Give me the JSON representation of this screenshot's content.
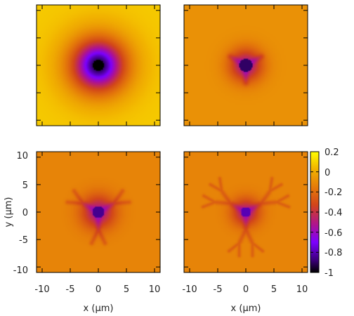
{
  "chart_data": [
    {
      "type": "heatmap",
      "panel": "top-left",
      "description_pattern": "radial well",
      "xlim": [
        -11,
        11
      ],
      "ylim": [
        -11,
        11
      ],
      "xlabel": "",
      "ylabel": "",
      "x_ticks": [],
      "y_ticks": [],
      "colorbar": false,
      "features": {
        "center_value": -1,
        "background_value": 0.08,
        "core_radius": 1.0,
        "halo_radius": 4.5,
        "branches": 0
      }
    },
    {
      "type": "heatmap",
      "panel": "top-right",
      "xlim": [
        -11,
        11
      ],
      "ylim": [
        -11,
        11
      ],
      "xlabel": "",
      "ylabel": "",
      "x_ticks": [],
      "y_ticks": [],
      "colorbar": false,
      "features": {
        "center_value": -0.9,
        "background_value": -0.08,
        "core_radius": 1.2,
        "halo_radius": 3.0,
        "branches": 3
      }
    },
    {
      "type": "heatmap",
      "panel": "bottom-left",
      "xlim": [
        -11,
        11
      ],
      "ylim": [
        -11,
        11
      ],
      "xlabel": "x (μm)",
      "ylabel": "y (μm)",
      "x_ticks": [
        "-10",
        "-5",
        "0",
        "5",
        "10"
      ],
      "y_ticks": [
        "10",
        "5",
        "0",
        "-5",
        "-10"
      ],
      "colorbar": false,
      "features": {
        "center_value": -0.85,
        "background_value": -0.12,
        "core_radius": 1.1,
        "halo_radius": 3.0,
        "branches": 3,
        "generations": 2
      }
    },
    {
      "type": "heatmap",
      "panel": "bottom-right",
      "xlim": [
        -11,
        11
      ],
      "ylim": [
        -11,
        11
      ],
      "xlabel": "x (μm)",
      "ylabel": "",
      "x_ticks": [
        "-10",
        "-5",
        "0",
        "5",
        "10"
      ],
      "y_ticks": [],
      "colorbar": true,
      "features": {
        "center_value": -0.8,
        "background_value": -0.12,
        "core_radius": 0.9,
        "halo_radius": 2.5,
        "branches": 3,
        "generations": 3
      }
    }
  ],
  "colorbar": {
    "range": [
      -1,
      0.2
    ],
    "ticks": [
      "0.2",
      "0",
      "-0.2",
      "-0.4",
      "-0.6",
      "-0.8",
      "-1"
    ],
    "colormap": [
      "#000000",
      "#3a0078",
      "#7c00ff",
      "#b0148c",
      "#d2461a",
      "#e4780a",
      "#f2b400",
      "#ffff00"
    ]
  },
  "colors": {
    "frame": "#000000",
    "text": "#222222"
  }
}
